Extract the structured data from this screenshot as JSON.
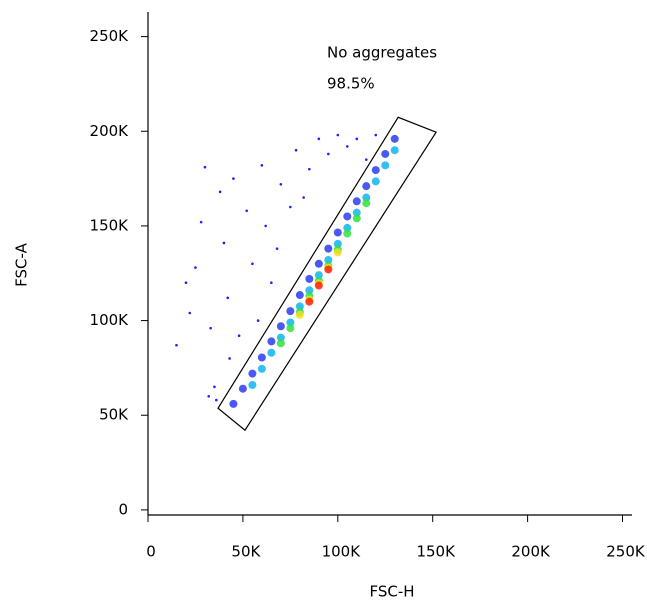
{
  "chart_data": {
    "type": "scatter",
    "x_label": "FSC-H",
    "y_label": "FSC-A",
    "xlim": [
      0,
      255000
    ],
    "ylim": [
      -2700,
      263000
    ],
    "xticks": [
      0,
      {
        "value": 50000,
        "label": "50K"
      },
      {
        "value": 100000,
        "label": "100K"
      },
      {
        "value": 150000,
        "label": "150K"
      },
      {
        "value": 200000,
        "label": "200K"
      },
      {
        "value": 250000,
        "label": "250K"
      }
    ],
    "yticks": [
      0,
      {
        "value": 50000,
        "label": "50K"
      },
      {
        "value": 100000,
        "label": "100K"
      },
      {
        "value": 150000,
        "label": "150K"
      },
      {
        "value": 200000,
        "label": "200K"
      },
      {
        "value": 250000,
        "label": "250K"
      }
    ],
    "gate": {
      "x": [
        36900,
        131800,
        151800,
        51100
      ],
      "y": [
        53700,
        207400,
        199500,
        42100
      ],
      "color": "#000000"
    },
    "annotations": [
      "No aggregates",
      "98.5%"
    ],
    "series": [
      {
        "color": "#2020ff",
        "x": [
          15000,
          22000,
          25000,
          30000,
          28000,
          33000,
          35000,
          38000,
          40000,
          42000,
          45000,
          48000,
          52000,
          55000,
          60000,
          62000,
          65000,
          70000,
          75000,
          78000,
          85000,
          90000,
          95000,
          100000,
          105000,
          110000,
          32000,
          36000,
          20000,
          43000,
          58000,
          68000,
          82000,
          115000,
          120000
        ],
        "values": [
          87000,
          104000,
          128000,
          181000,
          152000,
          96000,
          65000,
          168000,
          141000,
          112000,
          175000,
          92000,
          158000,
          130000,
          182000,
          150000,
          120000,
          172000,
          160000,
          190000,
          180000,
          196000,
          188000,
          198000,
          192000,
          196000,
          60000,
          58000,
          120000,
          80000,
          100000,
          138000,
          165000,
          185000,
          198000
        ]
      },
      {
        "color": "#2a3cf0",
        "x": [
          45000,
          50000,
          55000,
          60000,
          65000,
          70000,
          75000,
          80000,
          85000,
          90000,
          95000,
          100000,
          105000,
          110000,
          115000,
          120000,
          125000,
          130000
        ],
        "values": [
          56000,
          64000,
          72000,
          80500,
          89000,
          97000,
          105000,
          113500,
          122000,
          130000,
          138000,
          146500,
          155000,
          163000,
          171000,
          179500,
          188000,
          196000
        ]
      },
      {
        "color": "#10b4f0",
        "x": [
          55000,
          60000,
          65000,
          70000,
          75000,
          80000,
          85000,
          90000,
          95000,
          100000,
          105000,
          110000,
          115000,
          120000,
          125000,
          130000
        ],
        "values": [
          66000,
          74500,
          83000,
          91000,
          99000,
          107500,
          116000,
          124000,
          132000,
          140500,
          149000,
          157000,
          165000,
          173500,
          182000,
          190000
        ]
      },
      {
        "color": "#30e040",
        "x": [
          70000,
          75000,
          80000,
          85000,
          90000,
          95000,
          100000,
          105000,
          110000,
          115000
        ],
        "values": [
          88000,
          96000,
          104500,
          113000,
          121000,
          129000,
          137500,
          146000,
          154000,
          162000
        ]
      },
      {
        "color": "#f0e020",
        "x": [
          80000,
          85000,
          90000,
          95000,
          100000
        ],
        "values": [
          103000,
          111000,
          119500,
          128000,
          136000
        ]
      },
      {
        "color": "#ff2010",
        "x": [
          85000,
          90000,
          95000
        ],
        "values": [
          110000,
          118500,
          127000
        ]
      }
    ]
  }
}
